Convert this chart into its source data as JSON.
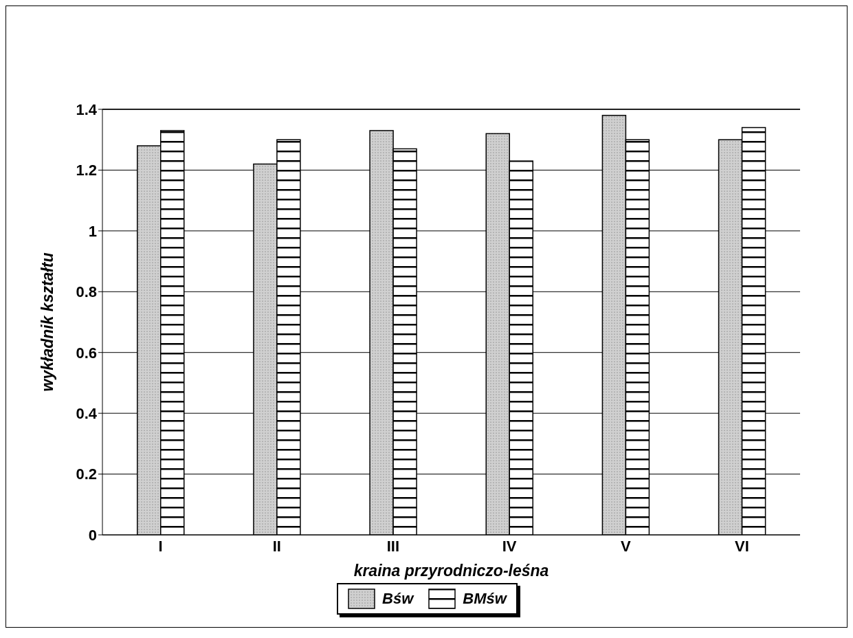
{
  "chart_data": {
    "type": "bar",
    "xlabel": "kraina przyrodniczo-leśna",
    "ylabel": "wykładnik kształtu",
    "categories": [
      "I",
      "II",
      "III",
      "IV",
      "V",
      "VI"
    ],
    "series": [
      {
        "name": "Bśw",
        "color": "#d0d0d0",
        "values": [
          1.28,
          1.22,
          1.33,
          1.32,
          1.38,
          1.3
        ]
      },
      {
        "name": "BMśw",
        "color": "#ffffff",
        "values": [
          1.33,
          1.3,
          1.27,
          1.23,
          1.3,
          1.34
        ]
      }
    ],
    "ylim": [
      0,
      1.4
    ],
    "yticks": [
      0,
      0.2,
      0.4,
      0.6,
      0.8,
      1,
      1.2,
      1.4
    ],
    "grid": "y",
    "legend": "bottom"
  }
}
